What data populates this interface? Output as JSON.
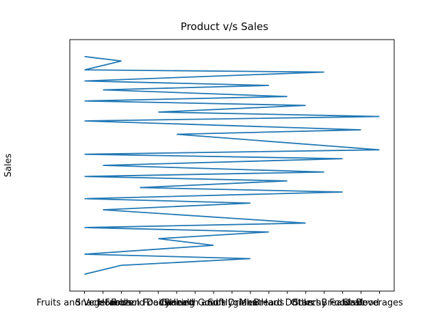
{
  "chart_data": {
    "type": "line",
    "title": "Product v/s Sales",
    "ylabel": "Sales",
    "categories": [
      "Fruits and Vegetables",
      "Snack Foods",
      "Household",
      "Frozen Foods",
      "Dairy",
      "Canned",
      "Baking Goods",
      "Health and Hygiene",
      "Soft Drinks",
      "Meat",
      "Breads",
      "Hard Drinks",
      "Others",
      "Starchy Foods",
      "Breakfast",
      "Seafood",
      "Beverages"
    ],
    "ylim": [
      0,
      100
    ],
    "series": [
      {
        "name": "Sales",
        "color": "#1f77b4",
        "x": [
          "Fruits and Vegetables",
          "Household",
          "Fruits and Vegetables",
          "Starchy Foods",
          "Fruits and Vegetables",
          "Breads",
          "Snack Foods",
          "Hard Drinks",
          "Fruits and Vegetables",
          "Others",
          "Dairy",
          "Beverages",
          "Fruits and Vegetables",
          "Seafood",
          "Canned",
          "Beverages",
          "Fruits and Vegetables",
          "Breakfast",
          "Snack Foods",
          "Starchy Foods",
          "Fruits and Vegetables",
          "Hard Drinks",
          "Frozen Foods",
          "Breakfast",
          "Fruits and Vegetables",
          "Meat",
          "Snack Foods",
          "Others",
          "Fruits and Vegetables",
          "Breads",
          "Dairy",
          "Health and Hygiene",
          "Fruits and Vegetables",
          "Meat",
          "Household",
          "Fruits and Vegetables"
        ],
        "values": [
          99,
          97,
          93,
          92,
          88,
          86,
          84,
          81,
          79,
          77,
          74,
          72,
          70,
          66,
          64,
          57,
          55,
          53,
          50,
          47,
          45,
          43,
          40,
          38,
          35,
          33,
          30,
          24,
          22,
          20,
          17,
          14,
          10,
          8,
          5,
          1
        ]
      }
    ]
  }
}
